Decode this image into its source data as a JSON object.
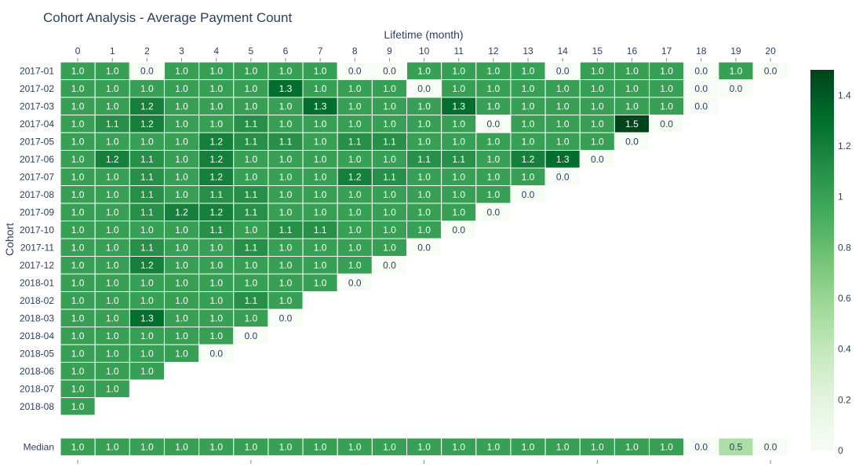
{
  "chart_data": {
    "type": "heatmap",
    "title": "Cohort Analysis - Average Payment Count",
    "xlabel": "Lifetime (month)",
    "ylabel": "Cohort",
    "x": [
      0,
      1,
      2,
      3,
      4,
      5,
      6,
      7,
      8,
      9,
      10,
      11,
      12,
      13,
      14,
      15,
      16,
      17,
      18,
      19,
      20
    ],
    "y": [
      "2017-01",
      "2017-02",
      "2017-03",
      "2017-04",
      "2017-05",
      "2017-06",
      "2017-07",
      "2017-08",
      "2017-09",
      "2017-10",
      "2017-11",
      "2017-12",
      "2018-01",
      "2018-02",
      "2018-03",
      "2018-04",
      "2018-05",
      "2018-06",
      "2018-07",
      "2018-08"
    ],
    "z": [
      [
        "1.0",
        "1.0",
        "0.0",
        "1.0",
        "1.0",
        "1.0",
        "1.0",
        "1.0",
        "0.0",
        "0.0",
        "1.0",
        "1.0",
        "1.0",
        "1.0",
        "0.0",
        "1.0",
        "1.0",
        "1.0",
        "0.0",
        "1.0",
        "0.0"
      ],
      [
        "1.0",
        "1.0",
        "1.0",
        "1.0",
        "1.0",
        "1.0",
        "1.3",
        "1.0",
        "1.0",
        "1.0",
        "0.0",
        "1.0",
        "1.0",
        "1.0",
        "1.0",
        "1.0",
        "1.0",
        "1.0",
        "0.0",
        "0.0"
      ],
      [
        "1.0",
        "1.0",
        "1.2",
        "1.0",
        "1.0",
        "1.0",
        "1.0",
        "1.3",
        "1.0",
        "1.0",
        "1.0",
        "1.3",
        "1.0",
        "1.0",
        "1.0",
        "1.0",
        "1.0",
        "1.0",
        "0.0"
      ],
      [
        "1.0",
        "1.1",
        "1.2",
        "1.0",
        "1.0",
        "1.1",
        "1.0",
        "1.0",
        "1.0",
        "1.0",
        "1.0",
        "1.0",
        "0.0",
        "1.0",
        "1.0",
        "1.0",
        "1.5",
        "0.0"
      ],
      [
        "1.0",
        "1.0",
        "1.0",
        "1.0",
        "1.2",
        "1.1",
        "1.1",
        "1.0",
        "1.1",
        "1.1",
        "1.0",
        "1.0",
        "1.0",
        "1.0",
        "1.0",
        "1.0",
        "0.0"
      ],
      [
        "1.0",
        "1.2",
        "1.1",
        "1.0",
        "1.2",
        "1.0",
        "1.0",
        "1.0",
        "1.0",
        "1.0",
        "1.1",
        "1.1",
        "1.0",
        "1.2",
        "1.3",
        "0.0"
      ],
      [
        "1.0",
        "1.0",
        "1.1",
        "1.0",
        "1.2",
        "1.0",
        "1.0",
        "1.0",
        "1.2",
        "1.1",
        "1.0",
        "1.0",
        "1.0",
        "1.0",
        "0.0"
      ],
      [
        "1.0",
        "1.0",
        "1.1",
        "1.0",
        "1.1",
        "1.1",
        "1.0",
        "1.0",
        "1.0",
        "1.0",
        "1.0",
        "1.0",
        "1.0",
        "0.0"
      ],
      [
        "1.0",
        "1.0",
        "1.1",
        "1.2",
        "1.2",
        "1.1",
        "1.0",
        "1.0",
        "1.0",
        "1.0",
        "1.0",
        "1.0",
        "0.0"
      ],
      [
        "1.0",
        "1.0",
        "1.0",
        "1.0",
        "1.1",
        "1.0",
        "1.1",
        "1.1",
        "1.0",
        "1.0",
        "1.0",
        "0.0"
      ],
      [
        "1.0",
        "1.0",
        "1.1",
        "1.0",
        "1.0",
        "1.1",
        "1.0",
        "1.0",
        "1.0",
        "1.0",
        "0.0"
      ],
      [
        "1.0",
        "1.0",
        "1.2",
        "1.0",
        "1.0",
        "1.0",
        "1.0",
        "1.0",
        "1.0",
        "0.0"
      ],
      [
        "1.0",
        "1.0",
        "1.0",
        "1.0",
        "1.0",
        "1.0",
        "1.0",
        "1.0",
        "0.0"
      ],
      [
        "1.0",
        "1.0",
        "1.0",
        "1.0",
        "1.0",
        "1.1",
        "1.0"
      ],
      [
        "1.0",
        "1.0",
        "1.3",
        "1.0",
        "1.0",
        "1.0",
        "0.0"
      ],
      [
        "1.0",
        "1.0",
        "1.0",
        "1.0",
        "1.0",
        "0.0"
      ],
      [
        "1.0",
        "1.0",
        "1.0",
        "1.0",
        "0.0"
      ],
      [
        "1.0",
        "1.0",
        "1.0"
      ],
      [
        "1.0",
        "1.0"
      ],
      [
        "1.0"
      ]
    ],
    "median_label": "Median",
    "median": [
      "1.0",
      "1.0",
      "1.0",
      "1.0",
      "1.0",
      "1.0",
      "1.0",
      "1.0",
      "1.0",
      "1.0",
      "1.0",
      "1.0",
      "1.0",
      "1.0",
      "1.0",
      "1.0",
      "1.0",
      "1.0",
      "0.0",
      "0.5",
      "0.0"
    ],
    "zrange": [
      0,
      1.5
    ],
    "colorscale": "Greens",
    "colorbar_ticks": [
      0,
      0.2,
      0.4,
      0.6,
      0.8,
      1,
      1.2,
      1.4
    ],
    "colorbar_tick_labels": [
      "0",
      "0.2",
      "0.4",
      "0.6",
      "0.8",
      "1",
      "1.2",
      "1.4"
    ]
  }
}
